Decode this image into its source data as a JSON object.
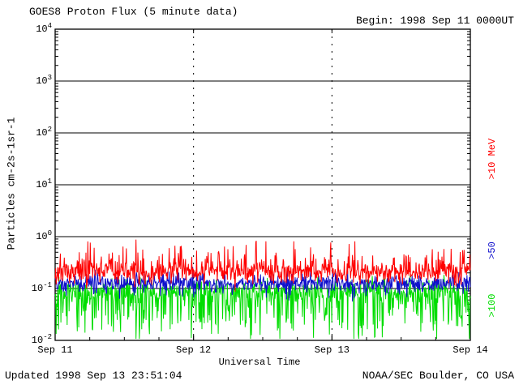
{
  "header": {
    "title": "GOES8 Proton Flux (5 minute data)",
    "begin": "Begin: 1998 Sep 11 0000UT"
  },
  "footer": {
    "updated": "Updated 1998 Sep 13 23:51:04",
    "credit": "NOAA/SEC Boulder, CO USA"
  },
  "chart_data": {
    "type": "line",
    "title": "GOES8 Proton Flux (5 minute data)",
    "xlabel": "Universal Time",
    "ylabel": "Particles cm-2s-1sr-1",
    "y_scale": "log",
    "y_log_range": [
      -2,
      4
    ],
    "y_ticks_exponents": [
      4,
      3,
      2,
      1,
      0,
      -1,
      -2
    ],
    "x_ticks": [
      "Sep 11",
      "Sep 12",
      "Sep 13",
      "Sep 14"
    ],
    "x_range_days": 3,
    "samples_per_day": 288,
    "grid": {
      "horizontal_decades": true,
      "vertical_dashed_at_days": [
        1,
        2
      ]
    },
    "legend_position": "right-rotated",
    "series": [
      {
        "name": ">10 MeV",
        "color": "#ff0000",
        "approx_flux_range": [
          0.1,
          0.7
        ],
        "log10_median": -0.68,
        "log10_sigma": 0.11,
        "spike_prob": 0.15,
        "spike_min": 0.1,
        "spike_max": 0.45,
        "spike_dir": 1,
        "seed": 11
      },
      {
        "name": ">50",
        "color": "#1010cc",
        "approx_flux_range": [
          0.07,
          0.3
        ],
        "log10_median": -0.9,
        "log10_sigma": 0.08,
        "spike_prob": 0.1,
        "spike_min": 0.05,
        "spike_max": 0.3,
        "spike_dir": 0,
        "seed": 50
      },
      {
        "name": ">100",
        "color": "#00dd00",
        "approx_flux_range": [
          0.01,
          0.16
        ],
        "log10_median": -1.05,
        "log10_sigma": 0.12,
        "spike_prob": 0.3,
        "spike_min": 0.1,
        "spike_max": 0.85,
        "spike_dir": -1,
        "seed": 100
      }
    ]
  }
}
